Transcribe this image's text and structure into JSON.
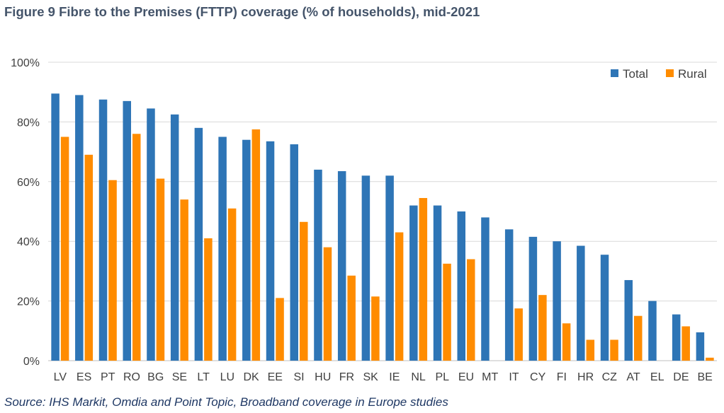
{
  "title": "Figure 9 Fibre to the Premises (FTTP) coverage (% of households), mid-2021",
  "source": "Source: IHS Markit, Omdia and Point Topic, Broadband coverage in Europe studies",
  "colors": {
    "total": "#2e75b6",
    "rural": "#ff8c00",
    "grid": "#d9d9d9",
    "axis": "#bfbfbf"
  },
  "chart_data": {
    "type": "bar",
    "categories": [
      "LV",
      "ES",
      "PT",
      "RO",
      "BG",
      "SE",
      "LT",
      "LU",
      "DK",
      "EE",
      "SI",
      "HU",
      "FR",
      "SK",
      "IE",
      "NL",
      "PL",
      "EU",
      "MT",
      "IT",
      "CY",
      "FI",
      "HR",
      "CZ",
      "AT",
      "EL",
      "DE",
      "BE"
    ],
    "series": [
      {
        "name": "Total",
        "values": [
          89.5,
          89,
          87.5,
          87,
          84.5,
          82.5,
          78,
          75,
          74,
          73.5,
          72.5,
          64,
          63.5,
          62,
          62,
          52,
          52,
          50,
          48,
          44,
          41.5,
          40,
          38.5,
          35.5,
          27,
          20,
          15.5,
          9.5
        ]
      },
      {
        "name": "Rural",
        "values": [
          75,
          69,
          60.5,
          76,
          61,
          54,
          41,
          51,
          77.5,
          21,
          46.5,
          38,
          28.5,
          21.5,
          43,
          54.5,
          32.5,
          34,
          0,
          17.5,
          22,
          12.5,
          7,
          7,
          15,
          0,
          11.5,
          1
        ]
      }
    ],
    "ylim": [
      0,
      100
    ],
    "yticks": [
      "0%",
      "20%",
      "40%",
      "60%",
      "80%",
      "100%"
    ],
    "grid": true,
    "legend": "top-right",
    "xlabel": "",
    "ylabel": ""
  }
}
